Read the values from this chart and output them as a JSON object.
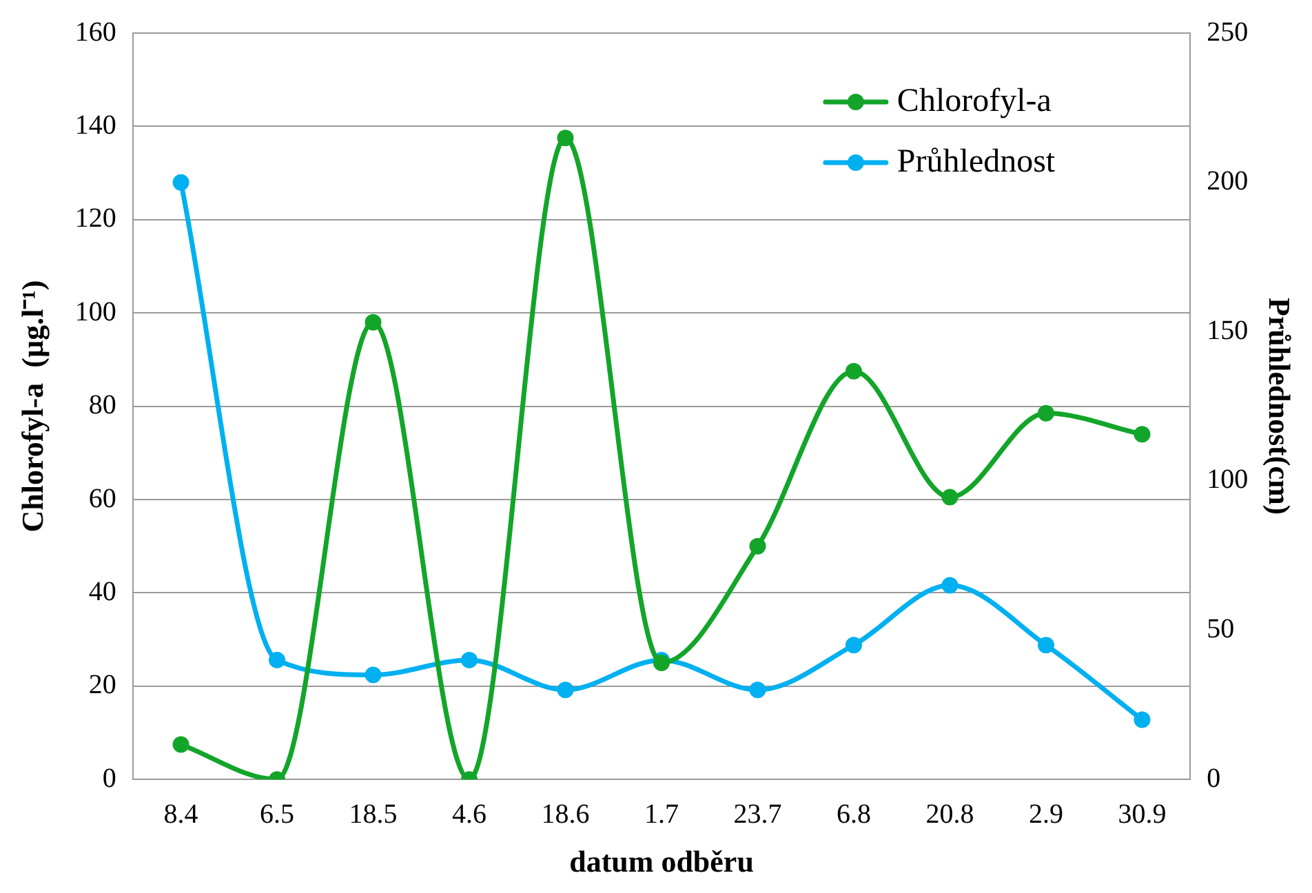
{
  "chart_data": {
    "type": "line",
    "xlabel": "datum odběru",
    "ylabel": "Chlorofyl-a  (µg.l⁻¹)",
    "y2label": "Průhlednost(cm)",
    "categories": [
      "8.4",
      "6.5",
      "18.5",
      "4.6",
      "18.6",
      "1.7",
      "23.7",
      "6.8",
      "20.8",
      "2.9",
      "30.9"
    ],
    "series": [
      {
        "name": "Chlorofyl-a",
        "color": "#13a52a",
        "values": [
          7.5,
          0,
          98,
          0,
          137.5,
          25,
          50,
          87.5,
          60.5,
          78.5,
          74
        ]
      },
      {
        "name": "Průhlednost",
        "color": "#00b0f0",
        "axis": "y2",
        "values": [
          200,
          40,
          35,
          40,
          30,
          40,
          30,
          45,
          65,
          45,
          20
        ]
      }
    ],
    "ylim": [
      0,
      160
    ],
    "yticks": [
      0,
      20,
      40,
      60,
      80,
      100,
      120,
      140,
      160
    ],
    "y2lim": [
      0,
      250
    ],
    "y2ticks": [
      0,
      50,
      100,
      150,
      200,
      250
    ],
    "grid": "y",
    "legend": "top right",
    "marker": "circle",
    "line_style": "solid"
  }
}
